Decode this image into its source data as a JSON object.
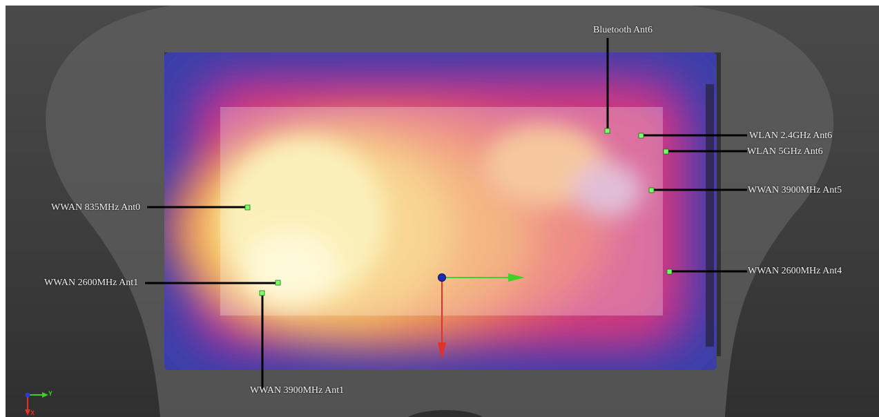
{
  "antennas": [
    {
      "id": "bluetooth-ant6",
      "label": "Bluetooth Ant6"
    },
    {
      "id": "wlan-24ghz-ant6",
      "label": "WLAN 2.4GHz Ant6"
    },
    {
      "id": "wlan-5ghz-ant6",
      "label": "WLAN 5GHz Ant6"
    },
    {
      "id": "wwan-3900mhz-ant5",
      "label": "WWAN 3900MHz Ant5"
    },
    {
      "id": "wwan-2600mhz-ant4",
      "label": "WWAN 2600MHz Ant4"
    },
    {
      "id": "wwan-835mhz-ant0",
      "label": "WWAN 835MHz Ant0"
    },
    {
      "id": "wwan-2600mhz-ant1",
      "label": "WWAN 2600MHz Ant1"
    },
    {
      "id": "wwan-3900mhz-ant1",
      "label": "WWAN 3900MHz Ant1"
    }
  ],
  "axes": {
    "y_label": "Y",
    "x_label": "X"
  },
  "colors": {
    "marker": "#7dff6a",
    "leader_line": "#000000",
    "label_text": "#f2f2f2",
    "background": "#3d3d3d",
    "axis_green": "#39d41f",
    "axis_red": "#e0312a",
    "axis_blue": "#2a3cd6"
  }
}
